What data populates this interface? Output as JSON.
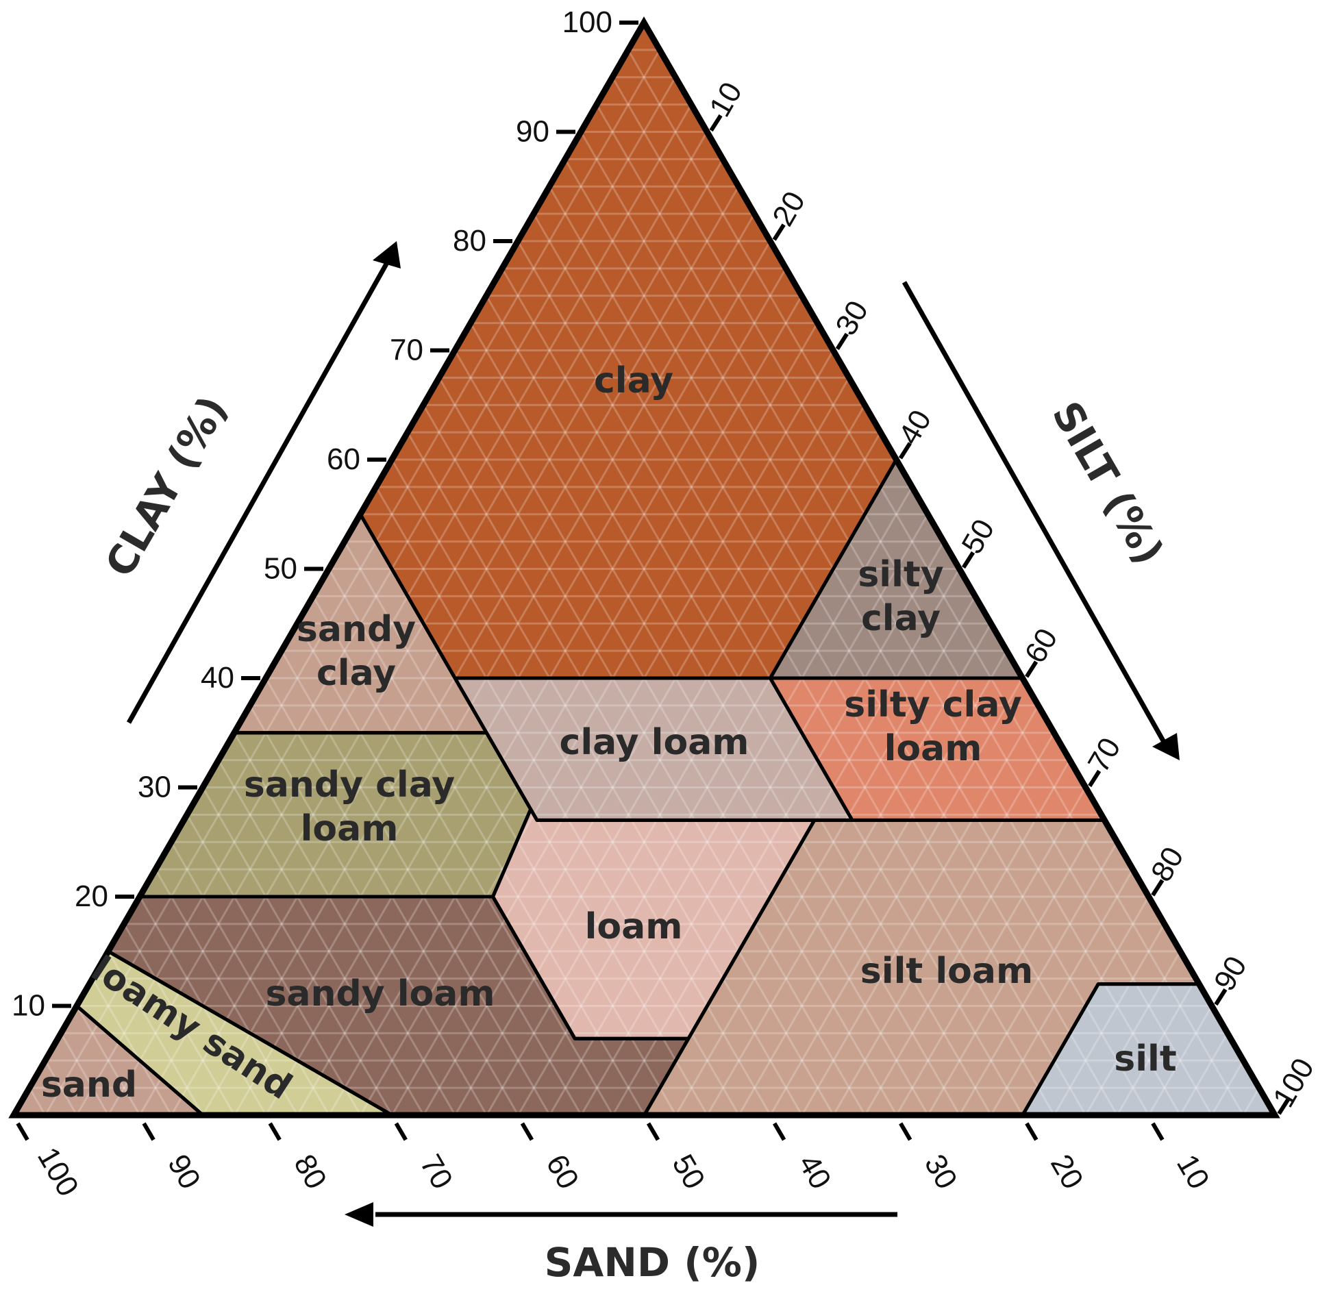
{
  "triangle": {
    "outline_color": "#000000",
    "pattern_color": "#ffffff"
  },
  "axes": {
    "clay": {
      "title": "CLAY (%)",
      "ticks": [
        "10",
        "20",
        "30",
        "40",
        "50",
        "60",
        "70",
        "80",
        "90",
        "100"
      ]
    },
    "silt": {
      "title": "SILT (%)",
      "ticks": [
        "10",
        "20",
        "30",
        "40",
        "50",
        "60",
        "70",
        "80",
        "90",
        "100"
      ]
    },
    "sand": {
      "title": "SAND (%)",
      "ticks": [
        "100",
        "90",
        "80",
        "70",
        "60",
        "50",
        "40",
        "30",
        "20",
        "10"
      ]
    }
  },
  "regions": [
    {
      "id": "clay",
      "label_lines": [
        "clay"
      ],
      "color": "#b95a2a",
      "points": [
        [
          0,
          100
        ],
        [
          45,
          55
        ],
        [
          40,
          60
        ],
        [
          20,
          40
        ],
        [
          45,
          40
        ]
      ],
      "note": "sand,clay pairs",
      "label_at": [
        22,
        66
      ]
    },
    {
      "id": "sandy-clay",
      "label_lines": [
        "sandy",
        "clay"
      ],
      "color": "#c6a08f",
      "label_at": [
        56,
        41
      ]
    },
    {
      "id": "silty-clay",
      "label_lines": [
        "silty",
        "clay"
      ],
      "color": "#9e8a80",
      "label_at": [
        8,
        47
      ]
    },
    {
      "id": "clay-loam",
      "label_lines": [
        "clay loam"
      ],
      "color": "#c6aea6",
      "label_at": [
        33,
        33
      ]
    },
    {
      "id": "silty-clay-loam",
      "label_lines": [
        "silty clay",
        "loam"
      ],
      "color": "#e0866a",
      "label_at": [
        9,
        33
      ]
    },
    {
      "id": "sandy-clay-loam",
      "label_lines": [
        "sandy clay",
        "loam"
      ],
      "color": "#a8a070",
      "label_at": [
        60,
        27
      ]
    },
    {
      "id": "loam",
      "label_lines": [
        "loam"
      ],
      "color": "#e0b8ad",
      "label_at": [
        41,
        17
      ]
    },
    {
      "id": "silt-loam",
      "label_lines": [
        "silt loam"
      ],
      "color": "#c8a28f",
      "label_at": [
        15,
        13
      ]
    },
    {
      "id": "sandy-loam",
      "label_lines": [
        "sandy loam"
      ],
      "color": "#8c685c",
      "label_at": [
        65,
        10
      ]
    },
    {
      "id": "loamy-sand",
      "label_lines": [
        "loamy sand"
      ],
      "color": "#d1cd97",
      "label_at": [
        84,
        6
      ]
    },
    {
      "id": "sand",
      "label_lines": [
        "sand"
      ],
      "color": "#c49f8f",
      "label_at": [
        93,
        3
      ]
    },
    {
      "id": "silt",
      "label_lines": [
        "silt"
      ],
      "color": "#c0c6d0",
      "label_at": [
        6,
        4
      ]
    }
  ]
}
